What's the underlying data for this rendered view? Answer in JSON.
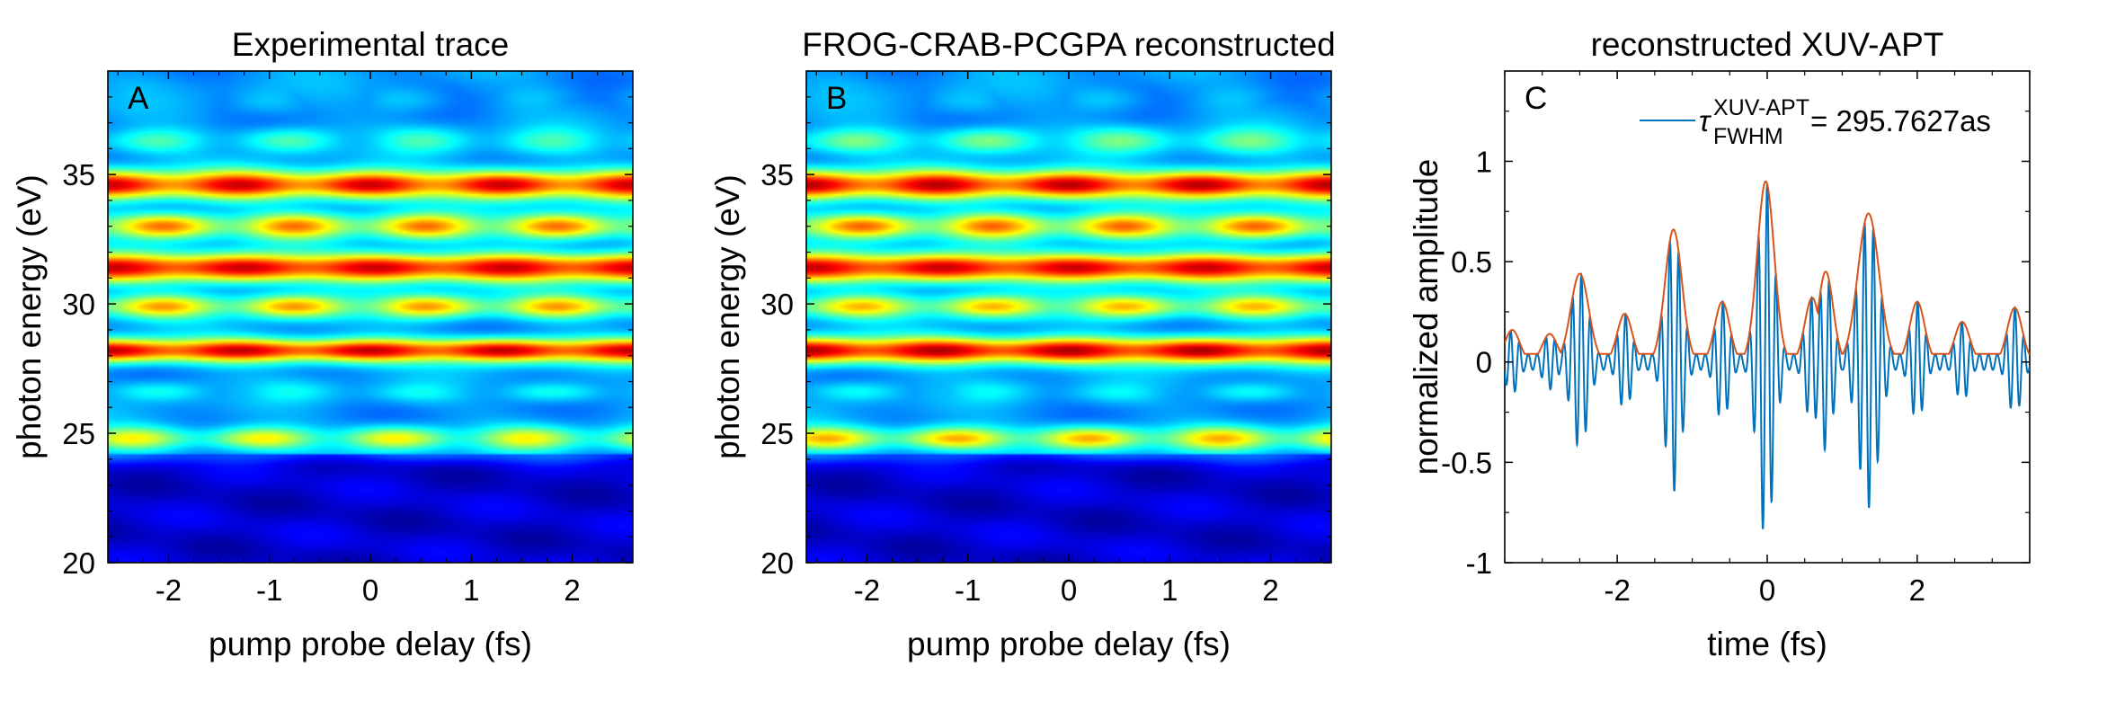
{
  "chart_data": [
    {
      "type": "heatmap",
      "panel_label": "A",
      "title": "Experimental trace",
      "xlabel": "pump probe delay (fs)",
      "ylabel": "photon energy (eV)",
      "xlim": [
        -2.6,
        2.6
      ],
      "ylim": [
        20,
        39
      ],
      "xticks": [
        -2,
        -1,
        0,
        1,
        2
      ],
      "yticks": [
        20,
        25,
        30,
        35
      ],
      "colormap": "jet",
      "bands": [
        {
          "energy_eV": 24.8,
          "width": 0.45,
          "base": 0.52,
          "mod": 0.12,
          "period_fs": 1.3,
          "phase_fs": 0.25
        },
        {
          "energy_eV": 26.6,
          "width": 0.4,
          "base": 0.34,
          "mod": 0.05,
          "period_fs": 1.3,
          "phase_fs": 0.5
        },
        {
          "energy_eV": 28.2,
          "width": 0.45,
          "base": 0.86,
          "mod": 0.08,
          "period_fs": 1.3,
          "phase_fs": 0.0
        },
        {
          "energy_eV": 29.9,
          "width": 0.45,
          "base": 0.6,
          "mod": 0.13,
          "period_fs": 1.3,
          "phase_fs": 0.55
        },
        {
          "energy_eV": 31.4,
          "width": 0.55,
          "base": 0.86,
          "mod": 0.07,
          "period_fs": 1.3,
          "phase_fs": 0.05
        },
        {
          "energy_eV": 33.0,
          "width": 0.5,
          "base": 0.63,
          "mod": 0.14,
          "period_fs": 1.3,
          "phase_fs": 0.55
        },
        {
          "energy_eV": 34.6,
          "width": 0.55,
          "base": 0.83,
          "mod": 0.1,
          "period_fs": 1.3,
          "phase_fs": 0.0
        },
        {
          "energy_eV": 36.3,
          "width": 0.5,
          "base": 0.38,
          "mod": 0.07,
          "period_fs": 1.3,
          "phase_fs": 0.5
        },
        {
          "energy_eV": 37.9,
          "width": 0.55,
          "base": 0.28,
          "mod": 0.04,
          "period_fs": 1.3,
          "phase_fs": 0.3
        }
      ],
      "background_high_eV": 0.27,
      "background_low_eV": 0.08,
      "cutoff_eV": 24.2
    },
    {
      "type": "heatmap",
      "panel_label": "B",
      "title": "FROG-CRAB-PCGPA reconstructed",
      "xlabel": "pump probe delay (fs)",
      "ylabel": "photon energy (eV)",
      "xlim": [
        -2.6,
        2.6
      ],
      "ylim": [
        20,
        39
      ],
      "xticks": [
        -2,
        -1,
        0,
        1,
        2
      ],
      "yticks": [
        20,
        25,
        30,
        35
      ],
      "colormap": "jet",
      "bands": [
        {
          "energy_eV": 24.8,
          "width": 0.45,
          "base": 0.58,
          "mod": 0.13,
          "period_fs": 1.3,
          "phase_fs": 0.2
        },
        {
          "energy_eV": 26.6,
          "width": 0.4,
          "base": 0.33,
          "mod": 0.05,
          "period_fs": 1.3,
          "phase_fs": 0.5
        },
        {
          "energy_eV": 28.2,
          "width": 0.5,
          "base": 0.88,
          "mod": 0.08,
          "period_fs": 1.3,
          "phase_fs": 0.0
        },
        {
          "energy_eV": 29.9,
          "width": 0.45,
          "base": 0.58,
          "mod": 0.12,
          "period_fs": 1.3,
          "phase_fs": 0.55
        },
        {
          "energy_eV": 31.4,
          "width": 0.55,
          "base": 0.86,
          "mod": 0.07,
          "period_fs": 1.3,
          "phase_fs": 0.05
        },
        {
          "energy_eV": 33.0,
          "width": 0.5,
          "base": 0.64,
          "mod": 0.14,
          "period_fs": 1.3,
          "phase_fs": 0.55
        },
        {
          "energy_eV": 34.6,
          "width": 0.55,
          "base": 0.85,
          "mod": 0.1,
          "period_fs": 1.3,
          "phase_fs": 0.0
        },
        {
          "energy_eV": 36.3,
          "width": 0.5,
          "base": 0.42,
          "mod": 0.08,
          "period_fs": 1.3,
          "phase_fs": 0.5
        },
        {
          "energy_eV": 37.9,
          "width": 0.55,
          "base": 0.28,
          "mod": 0.04,
          "period_fs": 1.3,
          "phase_fs": 0.3
        }
      ],
      "background_high_eV": 0.27,
      "background_low_eV": 0.08,
      "cutoff_eV": 24.2
    },
    {
      "type": "line",
      "panel_label": "C",
      "title": "reconstructed XUV-APT",
      "xlabel": "time (fs)",
      "ylabel": "normalized amplitude",
      "xlim": [
        -3.5,
        3.5
      ],
      "ylim": [
        -1,
        1.45
      ],
      "xticks": [
        -2,
        0,
        2
      ],
      "yticks": [
        -1,
        -0.5,
        0,
        0.5,
        1
      ],
      "ytick_labels": [
        "-1",
        "-0.5",
        "0",
        "0.5",
        "1"
      ],
      "legend": {
        "symbol": "τ",
        "superscript": "XUV-APT",
        "subscript": "FWHM",
        "value": "= 295.7627as",
        "placement": "top-right"
      },
      "carrier_period_fs": 0.118,
      "pulses": [
        {
          "t_fs": -2.5,
          "amp": 0.44,
          "width_fs": 0.17
        },
        {
          "t_fs": -1.25,
          "amp": 0.66,
          "width_fs": 0.16
        },
        {
          "t_fs": -0.02,
          "amp": 0.9,
          "width_fs": 0.16
        },
        {
          "t_fs": 1.35,
          "amp": 0.74,
          "width_fs": 0.2
        }
      ],
      "envelope_secondary_peaks": [
        {
          "t_fs": -3.4,
          "amp": 0.16
        },
        {
          "t_fs": -2.9,
          "amp": 0.14
        },
        {
          "t_fs": -1.9,
          "amp": 0.24
        },
        {
          "t_fs": -0.6,
          "amp": 0.3
        },
        {
          "t_fs": 0.6,
          "amp": 0.32
        },
        {
          "t_fs": 0.78,
          "amp": 0.45
        },
        {
          "t_fs": 2.0,
          "amp": 0.3
        },
        {
          "t_fs": 2.6,
          "amp": 0.2
        },
        {
          "t_fs": 3.3,
          "amp": 0.27
        }
      ],
      "series": [
        {
          "name": "τFWHM XUV-APT = 295.7627as",
          "color": "#0072bd",
          "role": "field"
        },
        {
          "color": "#d95319",
          "role": "envelope"
        }
      ]
    }
  ]
}
